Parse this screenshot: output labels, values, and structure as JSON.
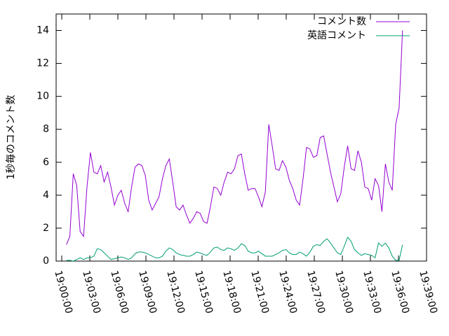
{
  "chart_data": {
    "type": "line",
    "ylabel": "1秒毎のコメント数",
    "x": [
      "19:00:30",
      "19:00:52",
      "19:01:14",
      "19:01:36",
      "19:01:58",
      "19:02:20",
      "19:02:42",
      "19:03:04",
      "19:03:26",
      "19:03:48",
      "19:04:10",
      "19:04:32",
      "19:04:54",
      "19:05:16",
      "19:05:38",
      "19:06:00",
      "19:06:22",
      "19:06:44",
      "19:07:06",
      "19:07:28",
      "19:07:50",
      "19:08:12",
      "19:08:34",
      "19:08:56",
      "19:09:18",
      "19:09:40",
      "19:10:02",
      "19:10:24",
      "19:10:46",
      "19:11:08",
      "19:11:30",
      "19:11:52",
      "19:12:14",
      "19:12:36",
      "19:12:58",
      "19:13:20",
      "19:13:42",
      "19:14:04",
      "19:14:26",
      "19:14:48",
      "19:15:10",
      "19:15:32",
      "19:15:54",
      "19:16:16",
      "19:16:38",
      "19:17:00",
      "19:17:22",
      "19:17:44",
      "19:18:06",
      "19:18:28",
      "19:18:50",
      "19:19:12",
      "19:19:34",
      "19:19:56",
      "19:20:18",
      "19:20:40",
      "19:21:02",
      "19:21:24",
      "19:21:46",
      "19:22:08",
      "19:22:30",
      "19:22:52",
      "19:23:14",
      "19:23:36",
      "19:23:58",
      "19:24:20",
      "19:24:42",
      "19:25:04",
      "19:25:26",
      "19:25:48",
      "19:26:10",
      "19:26:32",
      "19:26:54",
      "19:27:16",
      "19:27:38",
      "19:28:00",
      "19:28:22",
      "19:28:44",
      "19:29:06",
      "19:29:28",
      "19:29:50",
      "19:30:12",
      "19:30:34",
      "19:30:56",
      "19:31:18",
      "19:31:40",
      "19:32:02",
      "19:32:24",
      "19:32:46",
      "19:33:08",
      "19:33:30",
      "19:33:52",
      "19:34:14",
      "19:34:36",
      "19:34:58",
      "19:35:20",
      "19:35:42",
      "19:36:04",
      "19:36:26"
    ],
    "series": [
      {
        "name": "コメント数",
        "color": "#9400d3",
        "values": [
          1.0,
          1.5,
          5.3,
          4.6,
          1.8,
          1.5,
          4.5,
          6.6,
          5.4,
          5.3,
          5.8,
          4.8,
          5.4,
          4.5,
          3.4,
          4.0,
          4.3,
          3.5,
          3.0,
          4.5,
          5.7,
          5.9,
          5.8,
          5.2,
          3.7,
          3.1,
          3.5,
          3.9,
          5.0,
          5.8,
          6.2,
          4.8,
          3.3,
          3.1,
          3.4,
          2.8,
          2.3,
          2.6,
          3.0,
          2.9,
          2.4,
          2.3,
          3.3,
          4.5,
          4.4,
          4.0,
          4.8,
          5.4,
          5.3,
          5.6,
          6.4,
          6.5,
          5.3,
          4.3,
          4.4,
          4.4,
          3.9,
          3.3,
          4.2,
          8.3,
          7.0,
          5.6,
          5.5,
          6.1,
          5.7,
          4.9,
          4.4,
          3.7,
          3.4,
          5.0,
          6.9,
          6.8,
          6.3,
          6.4,
          7.5,
          7.6,
          6.5,
          5.4,
          4.5,
          3.6,
          4.1,
          5.7,
          7.0,
          5.6,
          5.5,
          6.7,
          6.0,
          4.5,
          4.4,
          3.7,
          5.0,
          4.6,
          3.0,
          5.9,
          4.8,
          4.3,
          8.3,
          9.3,
          14.0
        ]
      },
      {
        "name": "英語コメント",
        "color": "#009e73",
        "values": [
          0.05,
          0.05,
          0.0,
          0.1,
          0.2,
          0.1,
          0.2,
          0.2,
          0.3,
          0.75,
          0.7,
          0.5,
          0.3,
          0.1,
          0.15,
          0.2,
          0.25,
          0.2,
          0.1,
          0.2,
          0.45,
          0.55,
          0.55,
          0.5,
          0.4,
          0.3,
          0.2,
          0.2,
          0.3,
          0.6,
          0.8,
          0.7,
          0.5,
          0.4,
          0.35,
          0.3,
          0.3,
          0.4,
          0.55,
          0.5,
          0.4,
          0.35,
          0.55,
          0.8,
          0.85,
          0.7,
          0.65,
          0.8,
          0.75,
          0.65,
          0.8,
          1.05,
          0.95,
          0.6,
          0.5,
          0.5,
          0.6,
          0.45,
          0.3,
          0.3,
          0.3,
          0.4,
          0.5,
          0.65,
          0.7,
          0.5,
          0.4,
          0.4,
          0.55,
          0.45,
          0.3,
          0.55,
          0.9,
          1.0,
          0.95,
          1.2,
          1.35,
          1.1,
          0.8,
          0.5,
          0.4,
          0.9,
          1.45,
          1.2,
          0.7,
          0.5,
          0.35,
          0.45,
          0.4,
          0.35,
          0.2,
          1.1,
          0.9,
          1.1,
          0.8,
          0.3,
          0.05,
          0.05,
          1.0
        ]
      }
    ],
    "xlim": [
      "18:59:24",
      "19:39:00"
    ],
    "xticks": [
      "19:00:00",
      "19:03:00",
      "19:06:00",
      "19:09:00",
      "19:12:00",
      "19:15:00",
      "19:18:00",
      "19:21:00",
      "19:24:00",
      "19:27:00",
      "19:30:00",
      "19:33:00",
      "19:36:00",
      "19:39:00"
    ],
    "ylim": [
      0,
      15
    ],
    "yticks": [
      0,
      2,
      4,
      6,
      8,
      10,
      12,
      14
    ],
    "legend": "top-right"
  }
}
